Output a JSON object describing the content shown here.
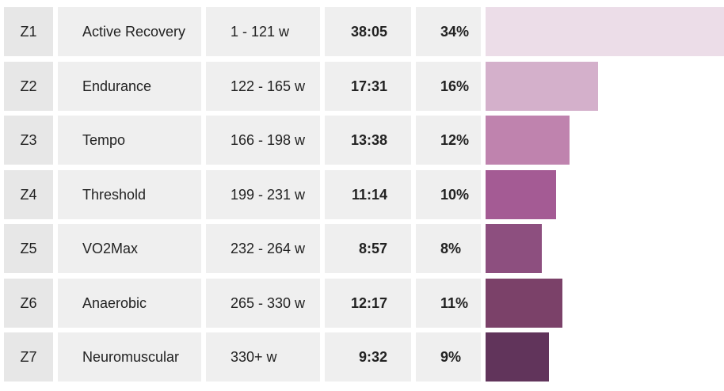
{
  "chart_data": {
    "type": "bar",
    "orientation": "horizontal",
    "columns": [
      "zone",
      "name",
      "power_range",
      "time",
      "percent"
    ],
    "colors": [
      "#ecdde8",
      "#d4b0cb",
      "#bf83ae",
      "#a45b94",
      "#8d4f7f",
      "#7b4169",
      "#61345b"
    ],
    "rows": [
      {
        "zone": "Z1",
        "name": "Active Recovery",
        "range": "1 - 121 w",
        "time": "38:05",
        "percent_label": "34%",
        "value": 34
      },
      {
        "zone": "Z2",
        "name": "Endurance",
        "range": "122 - 165 w",
        "time": "17:31",
        "percent_label": "16%",
        "value": 16
      },
      {
        "zone": "Z3",
        "name": "Tempo",
        "range": "166 - 198 w",
        "time": "13:38",
        "percent_label": "12%",
        "value": 12
      },
      {
        "zone": "Z4",
        "name": "Threshold",
        "range": "199 - 231 w",
        "time": "11:14",
        "percent_label": "10%",
        "value": 10
      },
      {
        "zone": "Z5",
        "name": "VO2Max",
        "range": "232 - 264 w",
        "time": "8:57",
        "percent_label": "8%",
        "value": 8
      },
      {
        "zone": "Z6",
        "name": "Anaerobic",
        "range": "265 - 330 w",
        "time": "12:17",
        "percent_label": "11%",
        "value": 11
      },
      {
        "zone": "Z7",
        "name": "Neuromuscular",
        "range": "330+ w",
        "time": "9:32",
        "percent_label": "9%",
        "value": 9
      }
    ]
  }
}
